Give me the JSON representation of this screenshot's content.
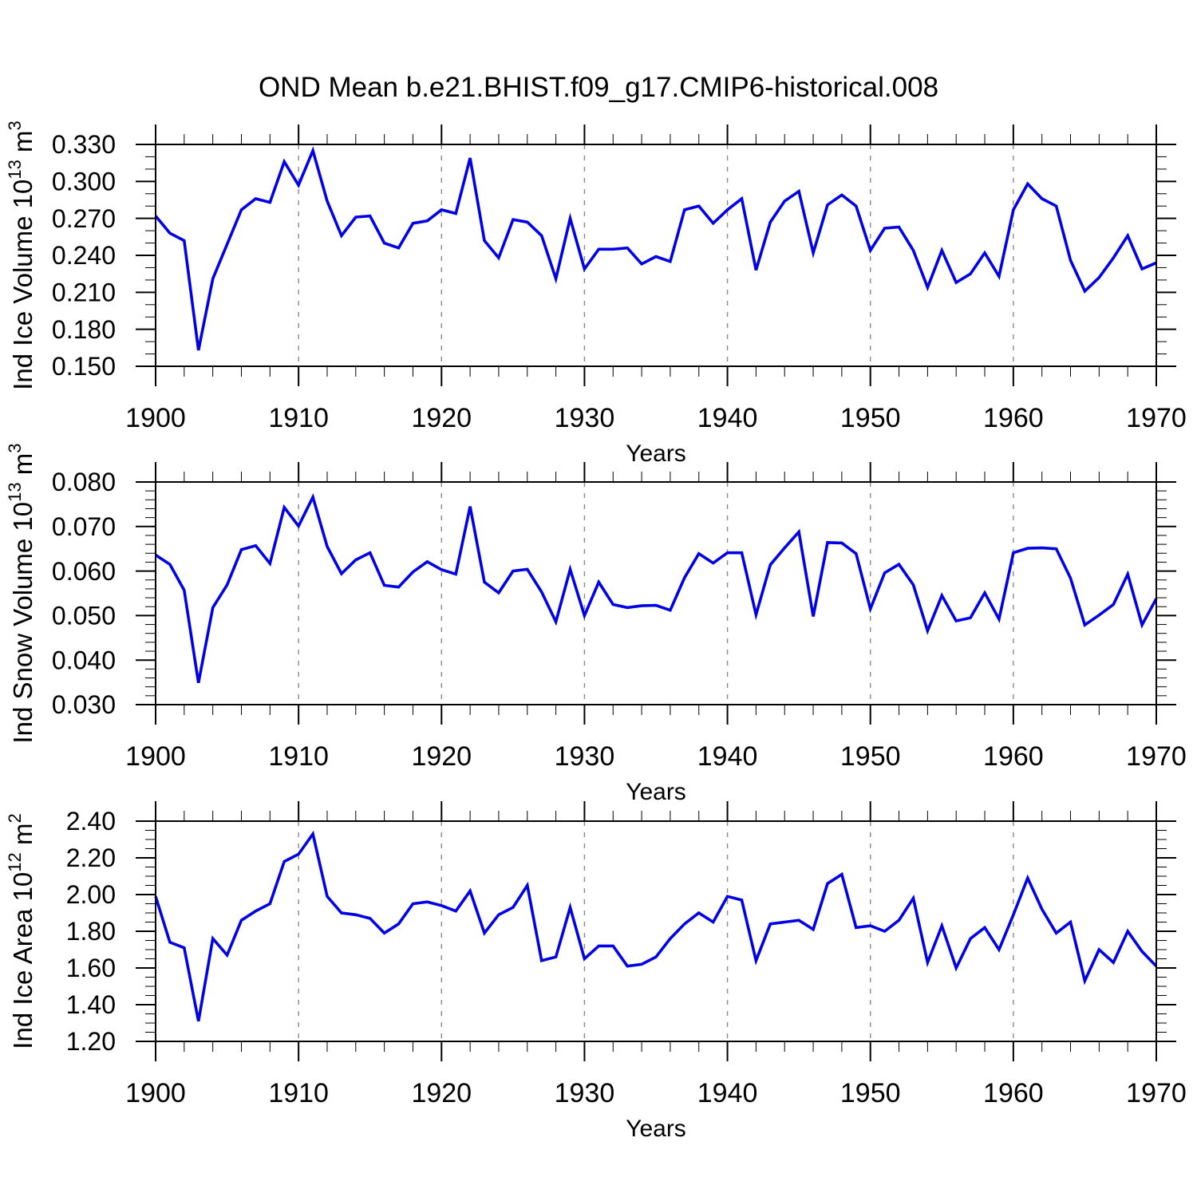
{
  "title": "OND Mean b.e21.BHIST.f09_g17.CMIP6-historical.008",
  "style": {
    "line_color": "#0101e6",
    "grid_color": "#8a8a8a",
    "frame_color": "#000000",
    "background": "#ffffff",
    "text_color": "#000000"
  },
  "chart_data": [
    {
      "id": "ice-volume",
      "type": "line",
      "title": "",
      "ylabel": "Ind Ice Volume 10^13 m^3",
      "ylabel_segments": [
        {
          "t": "Ind Ice Volume 10"
        },
        {
          "sup": "13"
        },
        {
          "t": " m"
        },
        {
          "sup": "3"
        }
      ],
      "xlabel": "Years",
      "x_range": [
        1900,
        1970
      ],
      "x_step": 1,
      "x_minor_step": 2,
      "x_tick_values": [
        1900,
        1910,
        1920,
        1930,
        1940,
        1950,
        1960,
        1970
      ],
      "x_tick_labels": [
        "1900",
        "1910",
        "1920",
        "1930",
        "1940",
        "1950",
        "1960",
        "1970"
      ],
      "x_gridlines": [
        1910,
        1920,
        1930,
        1940,
        1950,
        1960
      ],
      "ylim": [
        0.15,
        0.33
      ],
      "ytick_values": [
        0.15,
        0.18,
        0.21,
        0.24,
        0.27,
        0.3,
        0.33
      ],
      "ytick_labels": [
        "0.150",
        "0.180",
        "0.210",
        "0.240",
        "0.270",
        "0.300",
        "0.330"
      ],
      "y_minor_step": 0.01,
      "grid": "x-dashed",
      "legend_position": "none",
      "values": [
        0.272,
        0.258,
        0.252,
        0.163,
        0.221,
        0.249,
        0.277,
        0.286,
        0.283,
        0.316,
        0.297,
        0.325,
        0.284,
        0.256,
        0.271,
        0.272,
        0.25,
        0.246,
        0.266,
        0.268,
        0.277,
        0.274,
        0.319,
        0.252,
        0.238,
        0.269,
        0.267,
        0.256,
        0.221,
        0.27,
        0.229,
        0.245,
        0.245,
        0.246,
        0.233,
        0.239,
        0.235,
        0.277,
        0.28,
        0.266,
        0.277,
        0.286,
        0.228,
        0.267,
        0.284,
        0.292,
        0.242,
        0.281,
        0.289,
        0.28,
        0.244,
        0.262,
        0.263,
        0.244,
        0.214,
        0.244,
        0.218,
        0.225,
        0.242,
        0.223,
        0.277,
        0.298,
        0.286,
        0.28,
        0.236,
        0.211,
        0.222,
        0.238,
        0.256,
        0.229,
        0.234
      ]
    },
    {
      "id": "snow-volume",
      "type": "line",
      "title": "",
      "ylabel": "Ind Snow Volume 10^13 m^3",
      "ylabel_segments": [
        {
          "t": "Ind Snow Volume 10"
        },
        {
          "sup": "13"
        },
        {
          "t": " m"
        },
        {
          "sup": "3"
        }
      ],
      "xlabel": "Years",
      "x_range": [
        1900,
        1970
      ],
      "x_step": 1,
      "x_minor_step": 2,
      "x_tick_values": [
        1900,
        1910,
        1920,
        1930,
        1940,
        1950,
        1960,
        1970
      ],
      "x_tick_labels": [
        "1900",
        "1910",
        "1920",
        "1930",
        "1940",
        "1950",
        "1960",
        "1970"
      ],
      "x_gridlines": [
        1910,
        1920,
        1930,
        1940,
        1950,
        1960
      ],
      "ylim": [
        0.03,
        0.08
      ],
      "ytick_values": [
        0.03,
        0.04,
        0.05,
        0.06,
        0.07,
        0.08
      ],
      "ytick_labels": [
        "0.030",
        "0.040",
        "0.050",
        "0.060",
        "0.070",
        "0.080"
      ],
      "y_minor_step": 0.002,
      "grid": "x-dashed",
      "legend_position": "none",
      "values": [
        0.0636,
        0.0615,
        0.0557,
        0.0349,
        0.0518,
        0.0569,
        0.0648,
        0.0657,
        0.0617,
        0.0743,
        0.0701,
        0.0766,
        0.0655,
        0.0594,
        0.0625,
        0.0641,
        0.0568,
        0.0564,
        0.0598,
        0.0621,
        0.0603,
        0.0593,
        0.0745,
        0.0575,
        0.0551,
        0.06,
        0.0604,
        0.0553,
        0.0486,
        0.0604,
        0.05,
        0.0575,
        0.0525,
        0.0518,
        0.0522,
        0.0523,
        0.0512,
        0.0585,
        0.0639,
        0.0618,
        0.0641,
        0.0641,
        0.0502,
        0.0614,
        0.0652,
        0.0688,
        0.0498,
        0.0664,
        0.0663,
        0.0639,
        0.0515,
        0.0596,
        0.0615,
        0.0569,
        0.0466,
        0.0545,
        0.0488,
        0.0495,
        0.0551,
        0.0492,
        0.0641,
        0.0651,
        0.0652,
        0.065,
        0.0584,
        0.0479,
        0.0501,
        0.0525,
        0.0593,
        0.0479,
        0.0538
      ]
    },
    {
      "id": "ice-area",
      "type": "line",
      "title": "",
      "ylabel": "Ind Ice Area 10^12 m^2",
      "ylabel_segments": [
        {
          "t": "Ind Ice Area 10"
        },
        {
          "sup": "12"
        },
        {
          "t": " m"
        },
        {
          "sup": "2"
        }
      ],
      "xlabel": "Years",
      "x_range": [
        1900,
        1970
      ],
      "x_step": 1,
      "x_minor_step": 2,
      "x_tick_values": [
        1900,
        1910,
        1920,
        1930,
        1940,
        1950,
        1960,
        1970
      ],
      "x_tick_labels": [
        "1900",
        "1910",
        "1920",
        "1930",
        "1940",
        "1950",
        "1960",
        "1970"
      ],
      "x_gridlines": [
        1910,
        1920,
        1930,
        1940,
        1950,
        1960
      ],
      "ylim": [
        1.2,
        2.4
      ],
      "ytick_values": [
        1.2,
        1.4,
        1.6,
        1.8,
        2.0,
        2.2,
        2.4
      ],
      "ytick_labels": [
        "1.20",
        "1.40",
        "1.60",
        "1.80",
        "2.00",
        "2.20",
        "2.40"
      ],
      "y_minor_step": 0.05,
      "grid": "x-dashed",
      "legend_position": "none",
      "values": [
        1.99,
        1.74,
        1.71,
        1.31,
        1.76,
        1.67,
        1.86,
        1.91,
        1.95,
        2.18,
        2.22,
        2.33,
        1.99,
        1.9,
        1.89,
        1.87,
        1.79,
        1.84,
        1.95,
        1.96,
        1.94,
        1.91,
        2.02,
        1.79,
        1.89,
        1.93,
        2.05,
        1.64,
        1.66,
        1.93,
        1.65,
        1.72,
        1.72,
        1.61,
        1.62,
        1.66,
        1.76,
        1.84,
        1.9,
        1.85,
        1.99,
        1.97,
        1.64,
        1.84,
        1.85,
        1.86,
        1.81,
        2.06,
        2.11,
        1.82,
        1.83,
        1.8,
        1.86,
        1.98,
        1.63,
        1.83,
        1.6,
        1.76,
        1.82,
        1.7,
        1.89,
        2.09,
        1.92,
        1.79,
        1.85,
        1.53,
        1.7,
        1.63,
        1.8,
        1.69,
        1.61
      ]
    }
  ]
}
